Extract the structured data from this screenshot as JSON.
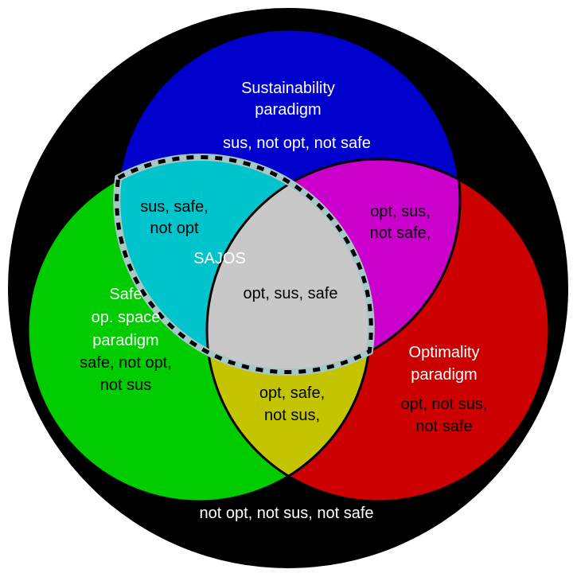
{
  "colors": {
    "background": "#000000",
    "sustainability": "#0000cc",
    "safe": "#00cc00",
    "optimality": "#cc0000",
    "sus_safe": "#00c4cc",
    "opt_sus": "#cc00cc",
    "opt_safe": "#c4c400",
    "center": "#c8c8c8",
    "sajos_boundary": "#a8c8c8"
  },
  "labels": {
    "sustainability_title_1": "Sustainability",
    "sustainability_title_2": "paradigm",
    "sustainability_region": "sus, not opt, not safe",
    "safe_title_1": "Safe",
    "safe_title_2": "op. space",
    "safe_title_3": "paradigm",
    "safe_region_1": "safe, not opt,",
    "safe_region_2": "not sus",
    "optimality_title_1": "Optimality",
    "optimality_title_2": "paradigm",
    "optimality_region_1": "opt, not sus,",
    "optimality_region_2": "not safe",
    "sus_safe_1": "sus, safe,",
    "sus_safe_2": "not opt",
    "opt_sus_1": "opt, sus,",
    "opt_sus_2": "not safe,",
    "opt_safe_1": "opt, safe,",
    "opt_safe_2": "not sus,",
    "center": "opt, sus, safe",
    "sajos": "SAJOS",
    "outside": "not opt, not sus, not safe"
  }
}
